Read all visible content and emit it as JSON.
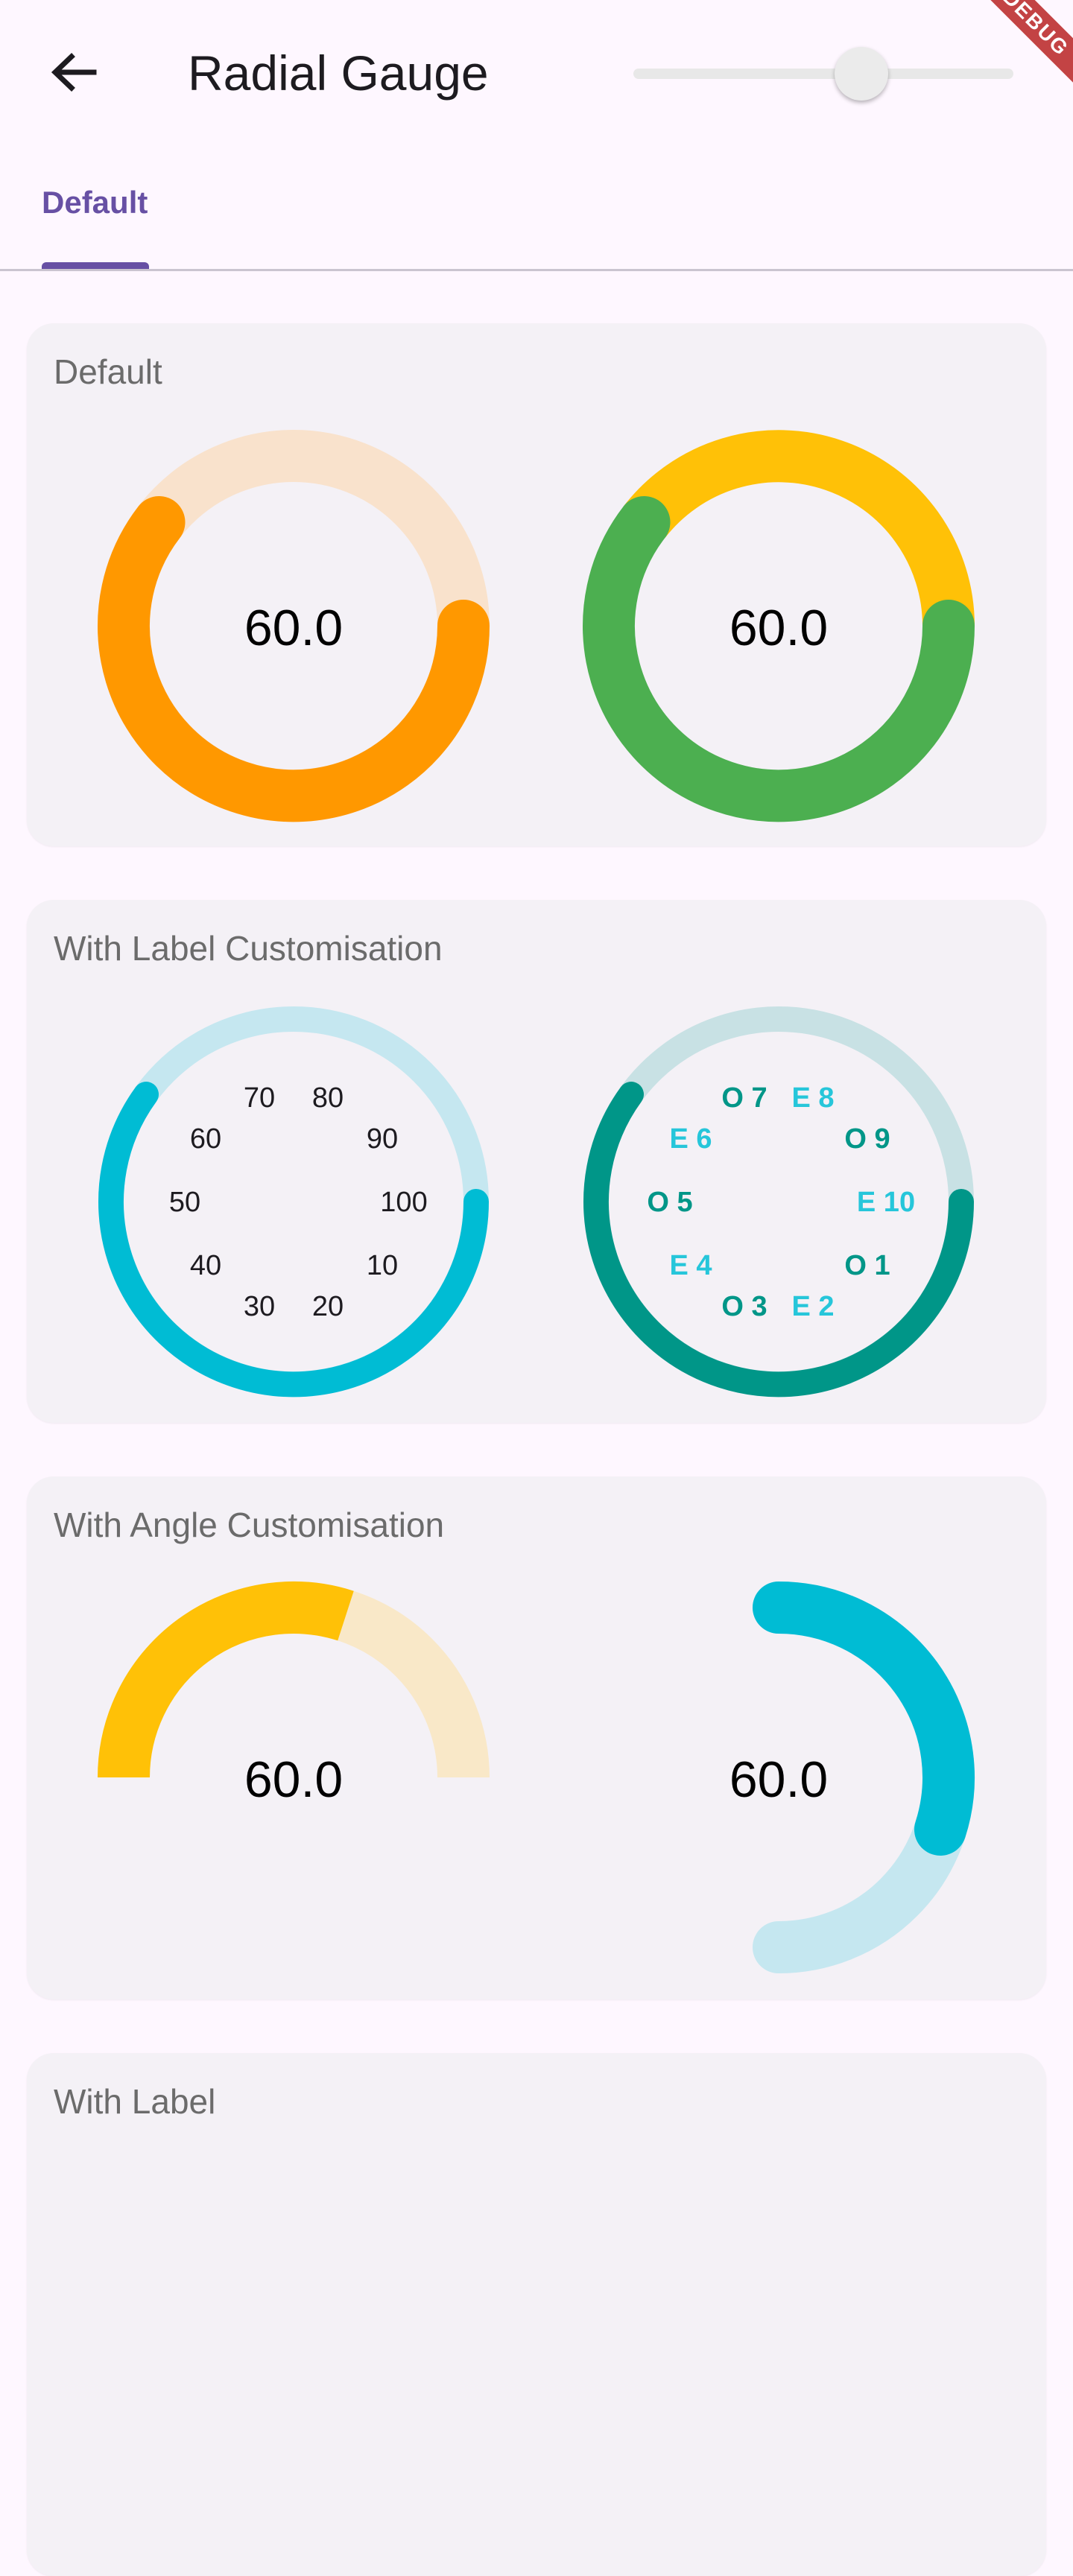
{
  "app_bar": {
    "title": "Radial Gauge",
    "debug_banner": "DEBUG",
    "slider_value": 0.6
  },
  "tabs": [
    {
      "label": "Default",
      "selected": true
    }
  ],
  "colors": {
    "orange": "#FF9800",
    "orange_track": "#F9E2CC",
    "green": "#4CAF50",
    "amber": "#FFC107",
    "cyan": "#00BCD4",
    "cyan_track": "#C5E7F0",
    "teal": "#009688",
    "teal_track": "#C8E1E4",
    "amber_track": "#F9E8C8"
  },
  "cards": [
    {
      "title": "Default",
      "gauges": [
        {
          "value_label": "60.0"
        },
        {
          "value_label": "60.0"
        }
      ]
    },
    {
      "title": "With Label Customisation",
      "gauges": [
        {
          "labels": [
            "10",
            "20",
            "30",
            "40",
            "50",
            "60",
            "70",
            "80",
            "90",
            "100"
          ]
        },
        {
          "labels": [
            "O 1",
            "E 2",
            "O 3",
            "E 4",
            "O 5",
            "E 6",
            "O 7",
            "E 8",
            "O 9",
            "E 10"
          ]
        }
      ]
    },
    {
      "title": "With Angle Customisation",
      "gauges": [
        {
          "value_label": "60.0"
        },
        {
          "value_label": "60.0"
        }
      ]
    },
    {
      "title": "With Label"
    }
  ]
}
